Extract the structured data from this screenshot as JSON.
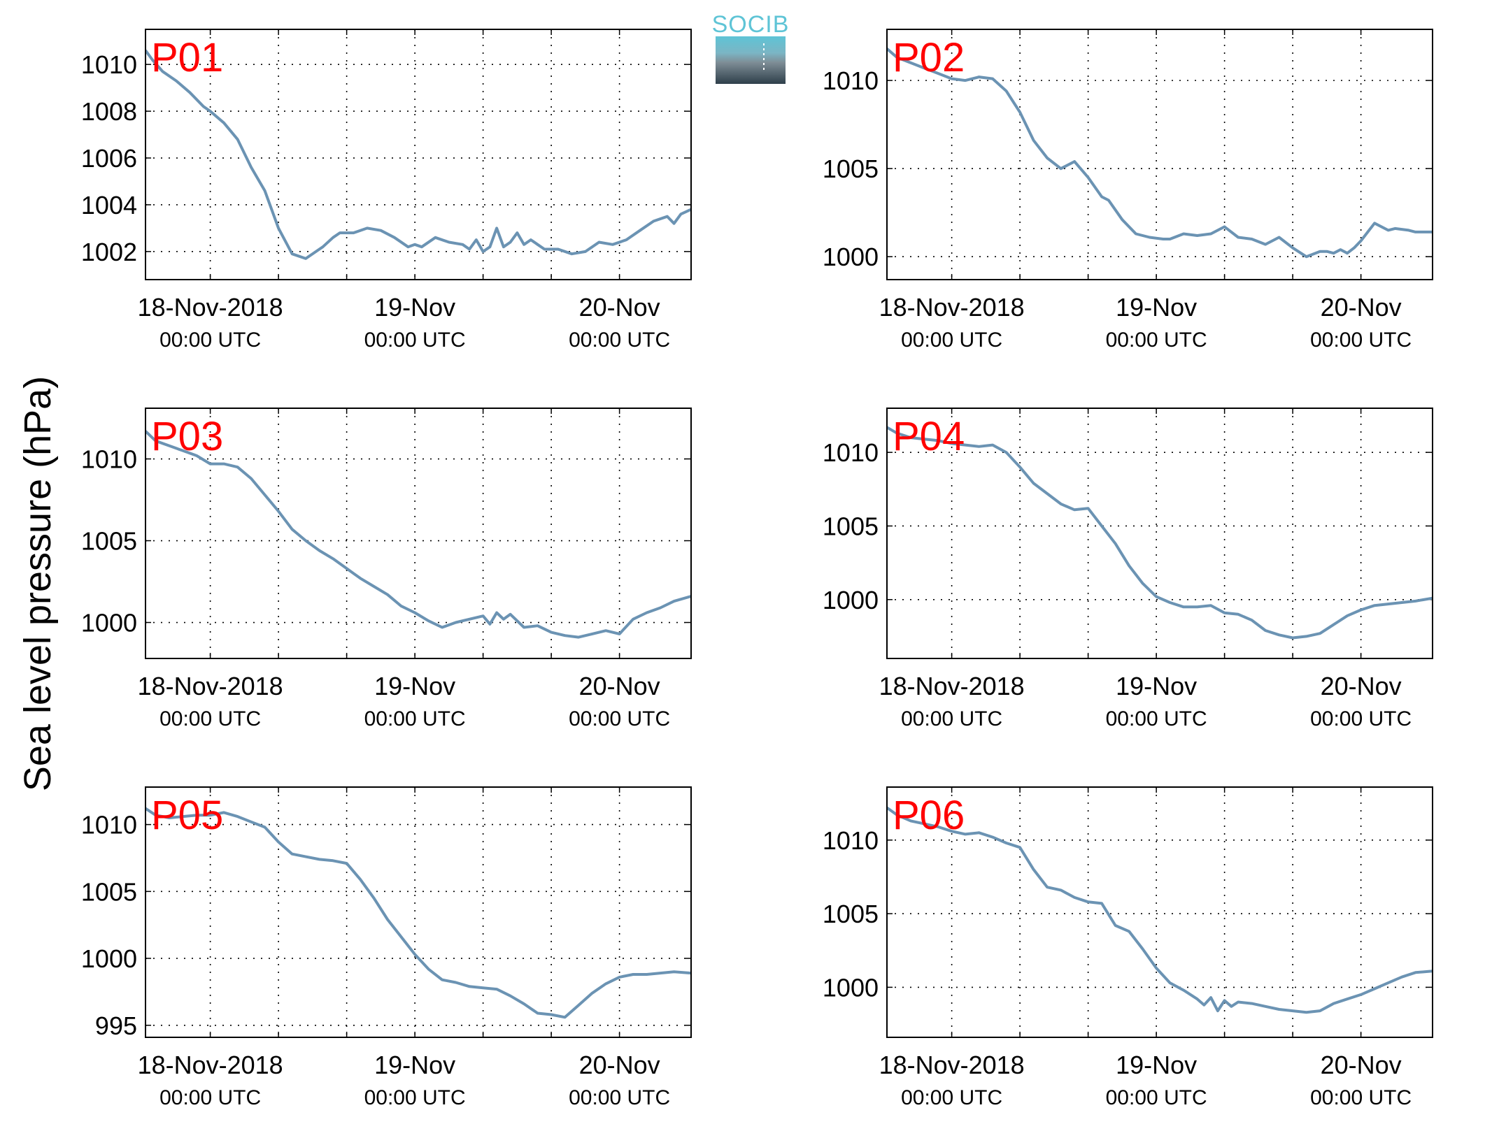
{
  "figure": {
    "ylabel": "Sea level pressure (hPa)",
    "logo_text": "SOCIB",
    "colors": {
      "line": "#6B93B3",
      "panel_label": "#FF0000",
      "grid": "#000000",
      "logo_top": "#5EC4D6",
      "logo_bottom": "#2E3F4A"
    }
  },
  "chart_data": [
    {
      "type": "line",
      "panel_label": "P01",
      "x_unit": "hours since 18-Nov-2018 00:00 UTC",
      "xlim": [
        -9.5,
        70.5
      ],
      "ylim": [
        1000.8,
        1011.5
      ],
      "yticks": [
        1002,
        1004,
        1006,
        1008,
        1010
      ],
      "xticks": [
        0,
        10,
        20,
        30,
        40,
        50,
        60
      ],
      "xticklabels": [
        {
          "main": "18-Nov-2018",
          "sub": "00:00 UTC"
        },
        {
          "main": "",
          "sub": ""
        },
        {
          "main": "",
          "sub": ""
        },
        {
          "main": "19-Nov",
          "sub": "00:00 UTC"
        },
        {
          "main": "",
          "sub": ""
        },
        {
          "main": "",
          "sub": ""
        },
        {
          "main": "20-Nov",
          "sub": "00:00 UTC"
        }
      ],
      "x": [
        -9.5,
        -8.5,
        -7,
        -5,
        -3,
        -1,
        0,
        2,
        4,
        6,
        8,
        10,
        12,
        14,
        16,
        16.5,
        18,
        19,
        21,
        23,
        25,
        27,
        29,
        30,
        31,
        33,
        35,
        37,
        38,
        39,
        40,
        41,
        42,
        43,
        44,
        45,
        46,
        47,
        48,
        49,
        51,
        53,
        55,
        57,
        59,
        61,
        63,
        65,
        67,
        68,
        69,
        70.5
      ],
      "y": [
        1010.6,
        1010.2,
        1009.7,
        1009.3,
        1008.8,
        1008.2,
        1008.0,
        1007.5,
        1006.8,
        1005.6,
        1004.6,
        1003.0,
        1001.9,
        1001.7,
        1002.1,
        1002.2,
        1002.6,
        1002.8,
        1002.8,
        1003.0,
        1002.9,
        1002.6,
        1002.2,
        1002.3,
        1002.2,
        1002.6,
        1002.4,
        1002.3,
        1002.1,
        1002.5,
        1002.0,
        1002.2,
        1003.0,
        1002.2,
        1002.4,
        1002.8,
        1002.3,
        1002.5,
        1002.3,
        1002.1,
        1002.1,
        1001.9,
        1002.0,
        1002.4,
        1002.3,
        1002.5,
        1002.9,
        1003.3,
        1003.5,
        1003.2,
        1003.6,
        1003.8
      ]
    },
    {
      "type": "line",
      "panel_label": "P02",
      "x_unit": "hours since 18-Nov-2018 00:00 UTC",
      "xlim": [
        -9.5,
        70.5
      ],
      "ylim": [
        998.7,
        1012.9
      ],
      "yticks": [
        1000,
        1005,
        1010
      ],
      "xticks": [
        0,
        10,
        20,
        30,
        40,
        50,
        60
      ],
      "xticklabels": [
        {
          "main": "18-Nov-2018",
          "sub": "00:00 UTC"
        },
        {
          "main": "",
          "sub": ""
        },
        {
          "main": "",
          "sub": ""
        },
        {
          "main": "19-Nov",
          "sub": "00:00 UTC"
        },
        {
          "main": "",
          "sub": ""
        },
        {
          "main": "",
          "sub": ""
        },
        {
          "main": "20-Nov",
          "sub": "00:00 UTC"
        }
      ],
      "x": [
        -9.5,
        -8,
        -6,
        -4,
        -2,
        0,
        2,
        4,
        6,
        8,
        10,
        12,
        14,
        16,
        18,
        20,
        22,
        23,
        25,
        27,
        29,
        31,
        32,
        34,
        36,
        38,
        40,
        42,
        44,
        46,
        48,
        50,
        52,
        54,
        55,
        56,
        57,
        58,
        59,
        60,
        62,
        64,
        65,
        67,
        68,
        70.5
      ],
      "y": [
        1011.8,
        1011.3,
        1011.0,
        1010.7,
        1010.4,
        1010.1,
        1010.0,
        1010.2,
        1010.1,
        1009.4,
        1008.2,
        1006.6,
        1005.6,
        1005.0,
        1005.4,
        1004.5,
        1003.4,
        1003.2,
        1002.1,
        1001.3,
        1001.1,
        1001.0,
        1001.0,
        1001.3,
        1001.2,
        1001.3,
        1001.7,
        1001.1,
        1001.0,
        1000.7,
        1001.1,
        1000.5,
        1000.0,
        1000.3,
        1000.3,
        1000.2,
        1000.4,
        1000.2,
        1000.5,
        1000.9,
        1001.9,
        1001.5,
        1001.6,
        1001.5,
        1001.4,
        1001.4
      ]
    },
    {
      "type": "line",
      "panel_label": "P03",
      "x_unit": "hours since 18-Nov-2018 00:00 UTC",
      "xlim": [
        -9.5,
        70.5
      ],
      "ylim": [
        997.8,
        1013.1
      ],
      "yticks": [
        1000,
        1005,
        1010
      ],
      "xticks": [
        0,
        10,
        20,
        30,
        40,
        50,
        60
      ],
      "xticklabels": [
        {
          "main": "18-Nov-2018",
          "sub": "00:00 UTC"
        },
        {
          "main": "",
          "sub": ""
        },
        {
          "main": "",
          "sub": ""
        },
        {
          "main": "19-Nov",
          "sub": "00:00 UTC"
        },
        {
          "main": "",
          "sub": ""
        },
        {
          "main": "",
          "sub": ""
        },
        {
          "main": "20-Nov",
          "sub": "00:00 UTC"
        }
      ],
      "x": [
        -9.5,
        -8,
        -6,
        -4,
        -2,
        0,
        2,
        4,
        6,
        8,
        10,
        12,
        14,
        16,
        18,
        20,
        22,
        24,
        26,
        28,
        30,
        32,
        34,
        36,
        38,
        40,
        41,
        42,
        43,
        44,
        46,
        48,
        50,
        52,
        54,
        56,
        58,
        60,
        62,
        64,
        66,
        68,
        70.5
      ],
      "y": [
        1011.7,
        1011.1,
        1010.8,
        1010.5,
        1010.2,
        1009.7,
        1009.7,
        1009.5,
        1008.8,
        1007.8,
        1006.8,
        1005.7,
        1005.0,
        1004.4,
        1003.9,
        1003.3,
        1002.7,
        1002.2,
        1001.7,
        1001.0,
        1000.6,
        1000.1,
        999.7,
        1000.0,
        1000.2,
        1000.4,
        999.9,
        1000.6,
        1000.2,
        1000.5,
        999.7,
        999.8,
        999.4,
        999.2,
        999.1,
        999.3,
        999.5,
        999.3,
        1000.2,
        1000.6,
        1000.9,
        1001.3,
        1001.6
      ]
    },
    {
      "type": "line",
      "panel_label": "P04",
      "x_unit": "hours since 18-Nov-2018 00:00 UTC",
      "xlim": [
        -9.5,
        70.5
      ],
      "ylim": [
        996.0,
        1013.0
      ],
      "yticks": [
        1000,
        1005,
        1010
      ],
      "xticks": [
        0,
        10,
        20,
        30,
        40,
        50,
        60
      ],
      "xticklabels": [
        {
          "main": "18-Nov-2018",
          "sub": "00:00 UTC"
        },
        {
          "main": "",
          "sub": ""
        },
        {
          "main": "",
          "sub": ""
        },
        {
          "main": "19-Nov",
          "sub": "00:00 UTC"
        },
        {
          "main": "",
          "sub": ""
        },
        {
          "main": "",
          "sub": ""
        },
        {
          "main": "20-Nov",
          "sub": "00:00 UTC"
        }
      ],
      "x": [
        -9.5,
        -8,
        -6,
        -4,
        -2,
        0,
        2,
        4,
        6,
        8,
        10,
        12,
        14,
        16,
        18,
        20,
        22,
        24,
        26,
        28,
        30,
        32,
        34,
        36,
        38,
        40,
        42,
        44,
        46,
        48,
        50,
        52,
        54,
        56,
        58,
        60,
        62,
        64,
        66,
        68,
        70.5
      ],
      "y": [
        1011.7,
        1011.3,
        1011.0,
        1010.9,
        1010.8,
        1010.6,
        1010.5,
        1010.4,
        1010.5,
        1010.0,
        1009.0,
        1007.9,
        1007.2,
        1006.5,
        1006.1,
        1006.2,
        1005.0,
        1003.8,
        1002.3,
        1001.1,
        1000.2,
        999.8,
        999.5,
        999.5,
        999.6,
        999.1,
        999.0,
        998.6,
        997.9,
        997.6,
        997.4,
        997.5,
        997.7,
        998.3,
        998.9,
        999.3,
        999.6,
        999.7,
        999.8,
        999.9,
        1000.1
      ]
    },
    {
      "type": "line",
      "panel_label": "P05",
      "x_unit": "hours since 18-Nov-2018 00:00 UTC",
      "xlim": [
        -9.5,
        70.5
      ],
      "ylim": [
        994.1,
        1012.8
      ],
      "yticks": [
        995,
        1000,
        1005,
        1010
      ],
      "xticks": [
        0,
        10,
        20,
        30,
        40,
        50,
        60
      ],
      "xticklabels": [
        {
          "main": "18-Nov-2018",
          "sub": "00:00 UTC"
        },
        {
          "main": "",
          "sub": ""
        },
        {
          "main": "",
          "sub": ""
        },
        {
          "main": "19-Nov",
          "sub": "00:00 UTC"
        },
        {
          "main": "",
          "sub": ""
        },
        {
          "main": "",
          "sub": ""
        },
        {
          "main": "20-Nov",
          "sub": "00:00 UTC"
        }
      ],
      "x": [
        -9.5,
        -8,
        -6,
        -4,
        -2,
        0,
        2,
        4,
        6,
        8,
        10,
        12,
        14,
        16,
        18,
        20,
        22,
        24,
        26,
        28,
        30,
        32,
        34,
        36,
        38,
        40,
        42,
        44,
        46,
        48,
        50,
        52,
        54,
        56,
        58,
        60,
        62,
        64,
        66,
        68,
        70.5
      ],
      "y": [
        1011.2,
        1010.7,
        1010.5,
        1010.6,
        1010.7,
        1010.7,
        1010.9,
        1010.6,
        1010.2,
        1009.8,
        1008.7,
        1007.8,
        1007.6,
        1007.4,
        1007.3,
        1007.1,
        1005.9,
        1004.5,
        1002.9,
        1001.6,
        1000.3,
        999.2,
        998.4,
        998.2,
        997.9,
        997.8,
        997.7,
        997.2,
        996.6,
        995.9,
        995.8,
        995.6,
        996.5,
        997.4,
        998.1,
        998.6,
        998.8,
        998.8,
        998.9,
        999.0,
        998.9
      ]
    },
    {
      "type": "line",
      "panel_label": "P06",
      "x_unit": "hours since 18-Nov-2018 00:00 UTC",
      "xlim": [
        -9.5,
        70.5
      ],
      "ylim": [
        996.6,
        1013.6
      ],
      "yticks": [
        1000,
        1005,
        1010
      ],
      "xticks": [
        0,
        10,
        20,
        30,
        40,
        50,
        60
      ],
      "xticklabels": [
        {
          "main": "18-Nov-2018",
          "sub": "00:00 UTC"
        },
        {
          "main": "",
          "sub": ""
        },
        {
          "main": "",
          "sub": ""
        },
        {
          "main": "19-Nov",
          "sub": "00:00 UTC"
        },
        {
          "main": "",
          "sub": ""
        },
        {
          "main": "",
          "sub": ""
        },
        {
          "main": "20-Nov",
          "sub": "00:00 UTC"
        }
      ],
      "x": [
        -9.5,
        -8,
        -6,
        -4,
        -2,
        0,
        2,
        4,
        6,
        8,
        10,
        12,
        14,
        16,
        18,
        20,
        22,
        24,
        26,
        28,
        30,
        32,
        34,
        36,
        37,
        38,
        39,
        40,
        41,
        42,
        44,
        46,
        48,
        50,
        52,
        54,
        56,
        58,
        60,
        62,
        64,
        66,
        68,
        70.5
      ],
      "y": [
        1012.2,
        1011.7,
        1011.3,
        1011.1,
        1010.9,
        1010.6,
        1010.4,
        1010.5,
        1010.2,
        1009.8,
        1009.5,
        1008.0,
        1006.8,
        1006.6,
        1006.1,
        1005.8,
        1005.7,
        1004.2,
        1003.8,
        1002.6,
        1001.3,
        1000.3,
        999.8,
        999.2,
        998.8,
        999.3,
        998.4,
        999.1,
        998.7,
        999.0,
        998.9,
        998.7,
        998.5,
        998.4,
        998.3,
        998.4,
        998.9,
        999.2,
        999.5,
        999.9,
        1000.3,
        1000.7,
        1001.0,
        1001.1
      ]
    }
  ]
}
